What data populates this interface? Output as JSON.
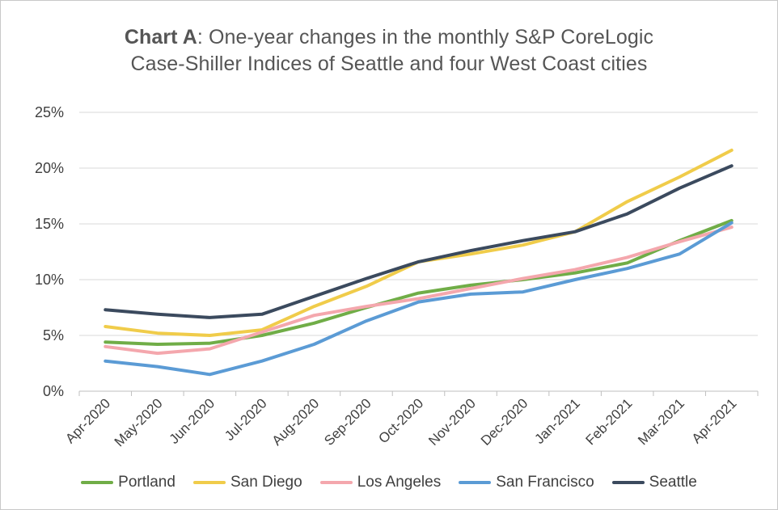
{
  "title": {
    "lead": "Chart A",
    "line1_rest": ": One-year changes in the monthly S&P CoreLogic",
    "line2": "Case-Shiller Indices of Seattle and four West Coast cities"
  },
  "chart_data": {
    "type": "line",
    "title": "Chart A: One-year changes in the monthly S&P CoreLogic Case-Shiller Indices of Seattle and four West Coast cities",
    "xlabel": "",
    "ylabel": "",
    "categories": [
      "Apr-2020",
      "May-2020",
      "Jun-2020",
      "Jul-2020",
      "Aug-2020",
      "Sep-2020",
      "Oct-2020",
      "Nov-2020",
      "Dec-2020",
      "Jan-2021",
      "Feb-2021",
      "Mar-2021",
      "Apr-2021"
    ],
    "ylim": [
      0,
      25
    ],
    "yticks": [
      0,
      5,
      10,
      15,
      20,
      25
    ],
    "ytick_labels": [
      "0%",
      "5%",
      "10%",
      "15%",
      "20%",
      "25%"
    ],
    "grid": "horizontal",
    "legend_position": "bottom",
    "series": [
      {
        "name": "Portland",
        "color": "#70ad47",
        "values": [
          4.4,
          4.2,
          4.3,
          5.0,
          6.1,
          7.5,
          8.8,
          9.5,
          10.0,
          10.6,
          11.5,
          13.5,
          15.3
        ]
      },
      {
        "name": "San Diego",
        "color": "#f0cc4a",
        "values": [
          5.8,
          5.2,
          5.0,
          5.5,
          7.6,
          9.4,
          11.6,
          12.3,
          13.1,
          14.3,
          17.0,
          19.2,
          21.6
        ]
      },
      {
        "name": "Los Angeles",
        "color": "#f4a7ad",
        "values": [
          4.0,
          3.4,
          3.8,
          5.3,
          6.8,
          7.6,
          8.3,
          9.2,
          10.1,
          10.9,
          12.0,
          13.4,
          14.7
        ]
      },
      {
        "name": "San Francisco",
        "color": "#5b9bd5",
        "values": [
          2.7,
          2.2,
          1.5,
          2.7,
          4.2,
          6.3,
          8.0,
          8.7,
          8.9,
          10.0,
          11.0,
          12.3,
          15.1
        ]
      },
      {
        "name": "Seattle",
        "color": "#3b4a5e",
        "values": [
          7.3,
          6.9,
          6.6,
          6.9,
          8.5,
          10.1,
          11.6,
          12.6,
          13.5,
          14.3,
          15.9,
          18.2,
          20.2
        ]
      }
    ]
  },
  "style": {
    "grid_color": "#d9d9d9",
    "axis_color": "#bfbfbf",
    "text_color": "#404040"
  }
}
